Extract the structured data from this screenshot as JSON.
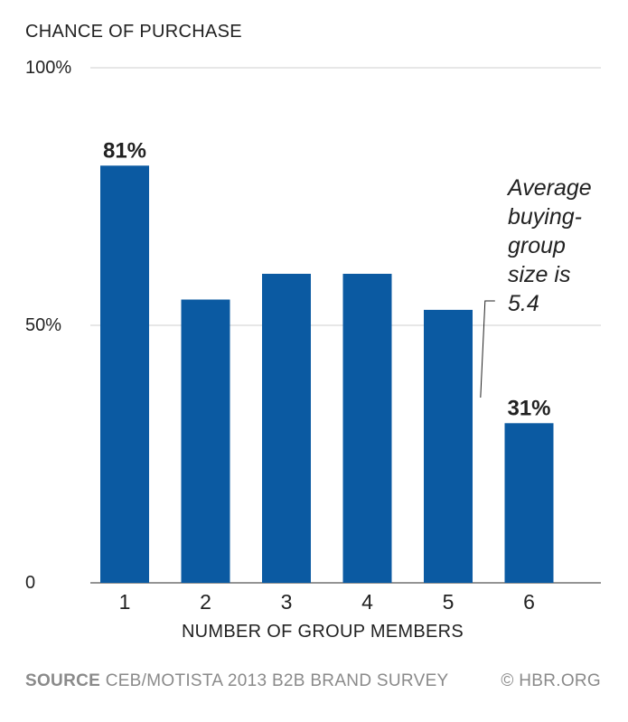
{
  "chart_data": {
    "type": "bar",
    "ylabel": "CHANCE OF PURCHASE",
    "xlabel": "NUMBER OF GROUP MEMBERS",
    "categories": [
      "1",
      "2",
      "3",
      "4",
      "5",
      "6"
    ],
    "values": [
      81,
      55,
      60,
      60,
      53,
      31
    ],
    "value_labels": [
      "81%",
      "",
      "",
      "",
      "",
      "31%"
    ],
    "ylim": [
      0,
      100
    ],
    "yticks": [
      {
        "value": 0,
        "label": "0"
      },
      {
        "value": 50,
        "label": "50%"
      },
      {
        "value": 100,
        "label": "100%"
      }
    ],
    "bar_color": "#0b5aa2",
    "grid": true,
    "annotation": {
      "lines": [
        "Average",
        "buying-",
        "group",
        "size is",
        "5.4"
      ],
      "x_value": 5.4
    }
  },
  "footer": {
    "source_label": "SOURCE",
    "source_text": "CEB/MOTISTA 2013 B2B BRAND SURVEY",
    "credit": "© HBR.ORG"
  }
}
